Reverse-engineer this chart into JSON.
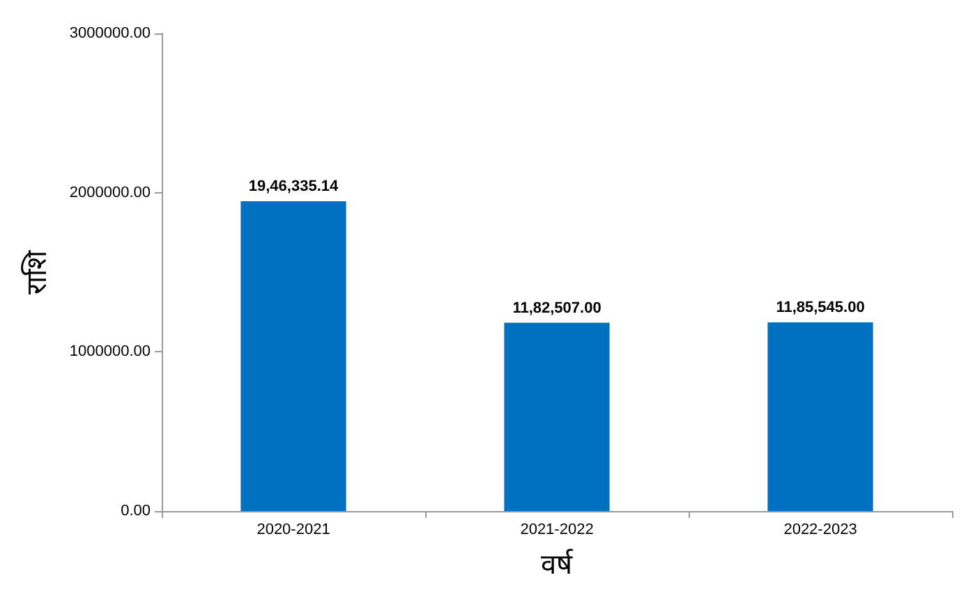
{
  "chart_data": {
    "type": "bar",
    "xlabel": "वर्ष",
    "ylabel": "राशि",
    "categories": [
      "2020-2021",
      "2021-2022",
      "2022-2023"
    ],
    "values": [
      1946335.14,
      1182507.0,
      1185545.0
    ],
    "value_labels": [
      "19,46,335.14",
      "11,82,507.00",
      "11,85,545.00"
    ],
    "color": "#0070c0",
    "ylim": [
      0,
      3000000
    ],
    "yticks": [
      {
        "value": 0,
        "label": "0.00"
      },
      {
        "value": 1000000,
        "label": "1000000.00"
      },
      {
        "value": 2000000,
        "label": "2000000.00"
      },
      {
        "value": 3000000,
        "label": "3000000.00"
      }
    ],
    "grid": false
  }
}
